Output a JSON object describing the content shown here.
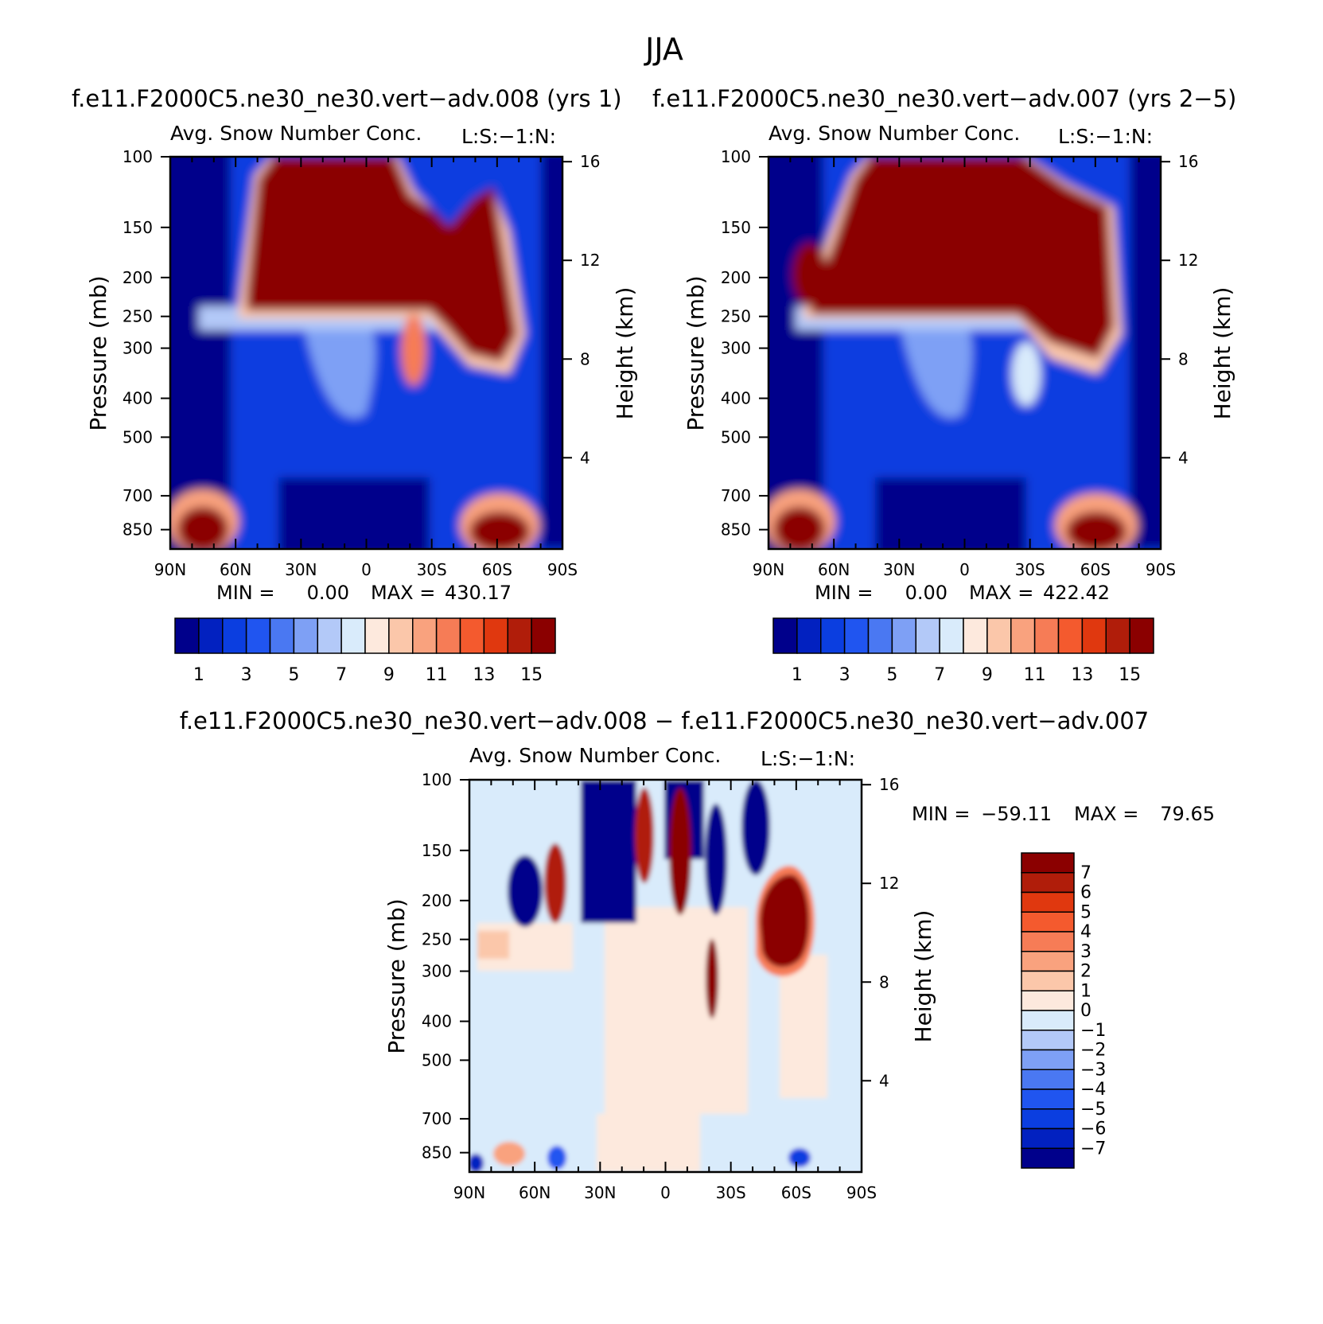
{
  "figure_title": "JJA",
  "chart_data": [
    {
      "type": "heatmap",
      "panel_title": "f.e11.F2000C5.ne30_ne30.vert−adv.008 (yrs 1)",
      "subtitle": "Avg. Snow Number Conc.",
      "subtitle_right": "L:S:−1:N:",
      "ylabel": "Pressure (mb)",
      "ylabel_right": "Height (km)",
      "x_ticks": [
        "90N",
        "60N",
        "30N",
        "0",
        "30S",
        "60S",
        "90S"
      ],
      "y_ticks": [
        "100",
        "150",
        "200",
        "250",
        "300",
        "400",
        "500",
        "700",
        "850"
      ],
      "y_ticks_right": [
        "16",
        "12",
        "8",
        "4"
      ],
      "stats": {
        "min_label": "MIN =",
        "min_value": "0.00",
        "max_label": "MAX =",
        "max_value": "430.17"
      },
      "colorbar": {
        "orientation": "horizontal",
        "labels": [
          "1",
          "3",
          "5",
          "7",
          "9",
          "11",
          "13",
          "15"
        ],
        "colors": [
          "#00008b",
          "#0221c0",
          "#0b3ee0",
          "#2055f0",
          "#4a78f2",
          "#7ea0f5",
          "#b3c9f8",
          "#d9ebfb",
          "#fde9dd",
          "#fbc7aa",
          "#f9a27e",
          "#f67c56",
          "#f45a2e",
          "#e0380f",
          "#b01d0a",
          "#8b0000"
        ]
      }
    },
    {
      "type": "heatmap",
      "panel_title": "f.e11.F2000C5.ne30_ne30.vert−adv.007 (yrs 2−5)",
      "subtitle": "Avg. Snow Number Conc.",
      "subtitle_right": "L:S:−1:N:",
      "ylabel": "Pressure (mb)",
      "ylabel_right": "Height (km)",
      "x_ticks": [
        "90N",
        "60N",
        "30N",
        "0",
        "30S",
        "60S",
        "90S"
      ],
      "y_ticks": [
        "100",
        "150",
        "200",
        "250",
        "300",
        "400",
        "500",
        "700",
        "850"
      ],
      "y_ticks_right": [
        "16",
        "12",
        "8",
        "4"
      ],
      "stats": {
        "min_label": "MIN =",
        "min_value": "0.00",
        "max_label": "MAX =",
        "max_value": "422.42"
      },
      "colorbar": {
        "orientation": "horizontal",
        "labels": [
          "1",
          "3",
          "5",
          "7",
          "9",
          "11",
          "13",
          "15"
        ],
        "colors": [
          "#00008b",
          "#0221c0",
          "#0b3ee0",
          "#2055f0",
          "#4a78f2",
          "#7ea0f5",
          "#b3c9f8",
          "#d9ebfb",
          "#fde9dd",
          "#fbc7aa",
          "#f9a27e",
          "#f67c56",
          "#f45a2e",
          "#e0380f",
          "#b01d0a",
          "#8b0000"
        ]
      }
    },
    {
      "type": "heatmap",
      "panel_title": "f.e11.F2000C5.ne30_ne30.vert−adv.008 − f.e11.F2000C5.ne30_ne30.vert−adv.007",
      "subtitle": "Avg. Snow Number Conc.",
      "subtitle_right": "L:S:−1:N:",
      "ylabel": "Pressure (mb)",
      "ylabel_right": "Height (km)",
      "x_ticks": [
        "90N",
        "60N",
        "30N",
        "0",
        "30S",
        "60S",
        "90S"
      ],
      "y_ticks": [
        "100",
        "150",
        "200",
        "250",
        "300",
        "400",
        "500",
        "700",
        "850"
      ],
      "y_ticks_right": [
        "16",
        "12",
        "8",
        "4"
      ],
      "stats": {
        "min_label": "MIN =",
        "min_value": "−59.11",
        "max_label": "MAX =",
        "max_value": "79.65"
      },
      "colorbar": {
        "orientation": "vertical",
        "labels": [
          "7",
          "6",
          "5",
          "4",
          "3",
          "2",
          "1",
          "0",
          "−1",
          "−2",
          "−3",
          "−4",
          "−5",
          "−6",
          "−7"
        ],
        "colors": [
          "#8b0000",
          "#b01d0a",
          "#e0380f",
          "#f45a2e",
          "#f67c56",
          "#f9a27e",
          "#fbc7aa",
          "#fde9dd",
          "#d9ebfb",
          "#b3c9f8",
          "#7ea0f5",
          "#4a78f2",
          "#2055f0",
          "#0b3ee0",
          "#0221c0",
          "#00008b"
        ]
      }
    }
  ]
}
